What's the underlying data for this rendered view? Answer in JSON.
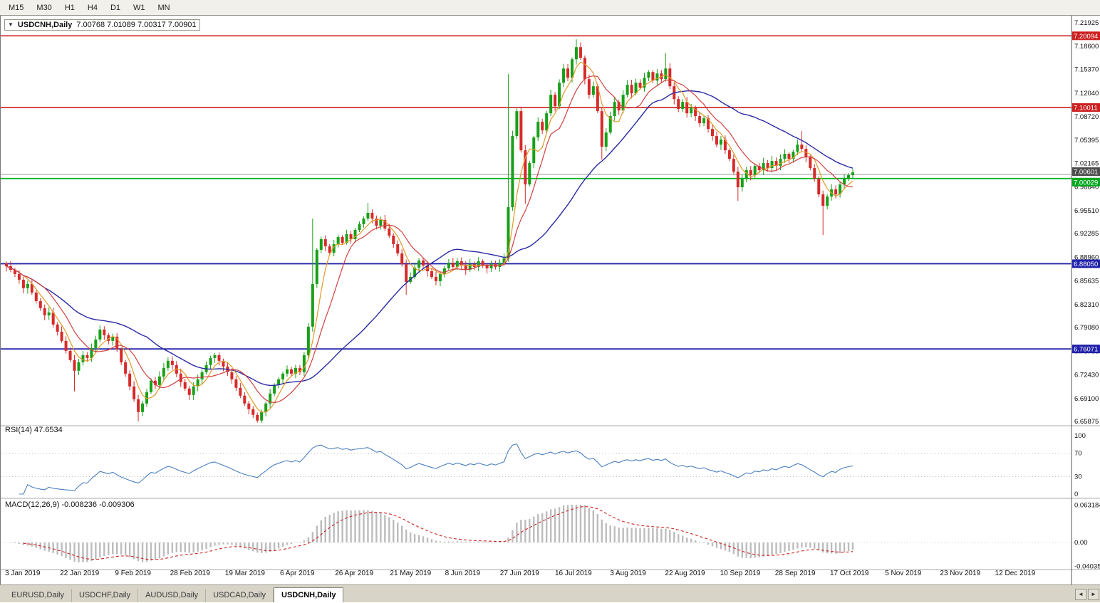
{
  "toolbar": {
    "timeframes": [
      "M15",
      "M30",
      "H1",
      "H4",
      "D1",
      "W1",
      "MN"
    ]
  },
  "price_panel": {
    "dropdown_glyph": "▼",
    "title_symbol": "USDCNH,Daily",
    "title_ohlc": "7.00768 7.01089 7.00317 7.00901"
  },
  "rsi_panel": {
    "label": "RSI(14) 47.6534"
  },
  "macd_panel": {
    "label": "MACD(12,26,9) -0.008236 -0.009306"
  },
  "x_labels": [
    "3 Jan 2019",
    "22 Jan 2019",
    "9 Feb 2019",
    "28 Feb 2019",
    "19 Mar 2019",
    "6 Apr 2019",
    "26 Apr 2019",
    "21 May 2019",
    "8 Jun 2019",
    "27 Jun 2019",
    "16 Jul 2019",
    "3 Aug 2019",
    "22 Aug 2019",
    "10 Sep 2019",
    "28 Sep 2019",
    "17 Oct 2019",
    "5 Nov 2019",
    "23 Nov 2019",
    "12 Dec 2019"
  ],
  "tabbar": {
    "tabs": [
      {
        "label": "EURUSD,Daily",
        "active": false
      },
      {
        "label": "USDCHF,Daily",
        "active": false
      },
      {
        "label": "AUDUSD,Daily",
        "active": false
      },
      {
        "label": "USDCAD,Daily",
        "active": false
      },
      {
        "label": "USDCNH,Daily",
        "active": true
      }
    ],
    "scroll_left": "◄",
    "scroll_right": "►"
  },
  "chart_data": {
    "type": "candlestick",
    "title": "USDCNH,Daily",
    "current_ohlc": {
      "open": 7.00768,
      "high": 7.01089,
      "low": 7.00317,
      "close": 7.00901
    },
    "price_axis": {
      "ticks": [
        7.21925,
        7.186,
        7.1537,
        7.1204,
        7.0872,
        7.05395,
        7.02165,
        6.9884,
        6.9551,
        6.92285,
        6.8896,
        6.85635,
        6.8231,
        6.7908,
        6.75755,
        6.7243,
        6.691,
        6.65875
      ]
    },
    "h_lines": [
      {
        "value": 7.20094,
        "color": "#cc2020",
        "badge_bg": "#cc2020",
        "width": 1.6,
        "badge_dy": 0
      },
      {
        "value": 7.10011,
        "color": "#cc2020",
        "badge_bg": "#cc2020",
        "width": 1.6,
        "badge_dy": 0
      },
      {
        "value": 7.00601,
        "color": "#9a9a9a",
        "badge_bg": "#4d4d4d",
        "width": 1,
        "badge_dy": -4
      },
      {
        "value": 7.00029,
        "color": "#00b41e",
        "badge_bg": "#00a81e",
        "width": 1.8,
        "badge_dy": 5
      },
      {
        "value": 6.8805,
        "color": "#2020aa",
        "badge_bg": "#2020aa",
        "width": 1.8,
        "badge_dy": 0
      },
      {
        "value": 6.76071,
        "color": "#2020aa",
        "badge_bg": "#2020aa",
        "width": 1.8,
        "badge_dy": 0
      }
    ],
    "colors": {
      "up": "#18a018",
      "down": "#d62a2a",
      "ma_fast": "#e09a28",
      "ma_mid": "#d04040",
      "ma_slow": "#2929a3",
      "rsi": "#4a7fbe",
      "rsi_level": "#b5b5b5",
      "macd_hist": "#bcbcbc",
      "macd_signal": "#cc2222"
    },
    "ma_periods": {
      "fast": 5,
      "mid": 10,
      "slow": 34
    },
    "closes": [
      6.877,
      6.872,
      6.866,
      6.858,
      6.846,
      6.852,
      6.84,
      6.828,
      6.818,
      6.808,
      6.812,
      6.795,
      6.785,
      6.772,
      6.758,
      6.745,
      6.73,
      6.742,
      6.752,
      6.748,
      6.762,
      6.774,
      6.788,
      6.78,
      6.772,
      6.778,
      6.76,
      6.742,
      6.726,
      6.708,
      6.69,
      6.672,
      6.684,
      6.7,
      6.716,
      6.71,
      6.722,
      6.734,
      6.744,
      6.738,
      6.726,
      6.714,
      6.705,
      6.696,
      6.708,
      6.718,
      6.728,
      6.738,
      6.748,
      6.752,
      6.744,
      6.736,
      6.728,
      6.718,
      6.706,
      6.695,
      6.684,
      6.676,
      6.668,
      6.66,
      6.672,
      6.684,
      6.698,
      6.71,
      6.718,
      6.726,
      6.732,
      6.726,
      6.734,
      6.728,
      6.752,
      6.792,
      6.852,
      6.9,
      6.915,
      6.905,
      6.896,
      6.908,
      6.918,
      6.91,
      6.922,
      6.915,
      6.928,
      6.936,
      6.944,
      6.952,
      6.944,
      6.934,
      6.942,
      6.93,
      6.92,
      6.908,
      6.895,
      6.88,
      6.855,
      6.862,
      6.875,
      6.885,
      6.878,
      6.87,
      6.862,
      6.856,
      6.866,
      6.874,
      6.882,
      6.876,
      6.884,
      6.878,
      6.872,
      6.88,
      6.876,
      6.884,
      6.878,
      6.874,
      6.88,
      6.876,
      6.882,
      6.888,
      6.96,
      7.06,
      7.095,
      7.04,
      6.992,
      7.022,
      7.058,
      7.08,
      7.068,
      7.092,
      7.118,
      7.102,
      7.135,
      7.155,
      7.142,
      7.168,
      7.185,
      7.17,
      7.14,
      7.118,
      7.13,
      7.095,
      7.045,
      7.065,
      7.088,
      7.108,
      7.096,
      7.118,
      7.132,
      7.12,
      7.135,
      7.128,
      7.142,
      7.15,
      7.138,
      7.148,
      7.14,
      7.155,
      7.13,
      7.112,
      7.098,
      7.108,
      7.092,
      7.1,
      7.088,
      7.078,
      7.085,
      7.07,
      7.06,
      7.048,
      7.055,
      7.04,
      7.028,
      7.01,
      6.988,
      7.0,
      7.012,
      7.005,
      7.018,
      7.012,
      7.022,
      7.015,
      7.025,
      7.018,
      7.028,
      7.035,
      7.028,
      7.038,
      7.048,
      7.042,
      7.03,
      7.015,
      7.0,
      6.978,
      6.962,
      6.975,
      6.985,
      6.978,
      6.992,
      7.0,
      7.005,
      7.009
    ],
    "wick_overrides": {
      "16": {
        "l": 6.701
      },
      "31": {
        "l": 6.659
      },
      "59": {
        "l": 6.657
      },
      "72": {
        "h": 6.944
      },
      "85": {
        "h": 6.966
      },
      "94": {
        "l": 6.837
      },
      "118": {
        "h": 7.147
      },
      "122": {
        "l": 6.965
      },
      "134": {
        "h": 7.196
      },
      "140": {
        "l": 7.027
      },
      "155": {
        "h": 7.177
      },
      "172": {
        "l": 6.969
      },
      "187": {
        "h": 7.067
      },
      "192": {
        "l": 6.921
      }
    },
    "rsi": {
      "period": 14,
      "ticks": [
        100,
        70,
        30,
        0
      ],
      "levels": [
        70,
        30
      ],
      "current": 47.6534
    },
    "macd": {
      "fast": 12,
      "slow": 26,
      "signal": 9,
      "ticks": [
        {
          "label": "0.063184",
          "value": 0.063184
        },
        {
          "label": "0.00",
          "value": 0
        },
        {
          "label": "-0.040355",
          "value": -0.040355
        }
      ],
      "current_macd": -0.008236,
      "current_signal": -0.009306
    },
    "x_labels": [
      "3 Jan 2019",
      "22 Jan 2019",
      "9 Feb 2019",
      "28 Feb 2019",
      "19 Mar 2019",
      "6 Apr 2019",
      "26 Apr 2019",
      "21 May 2019",
      "8 Jun 2019",
      "27 Jun 2019",
      "16 Jul 2019",
      "3 Aug 2019",
      "22 Aug 2019",
      "10 Sep 2019",
      "28 Sep 2019",
      "17 Oct 2019",
      "5 Nov 2019",
      "23 Nov 2019",
      "12 Dec 2019"
    ]
  }
}
